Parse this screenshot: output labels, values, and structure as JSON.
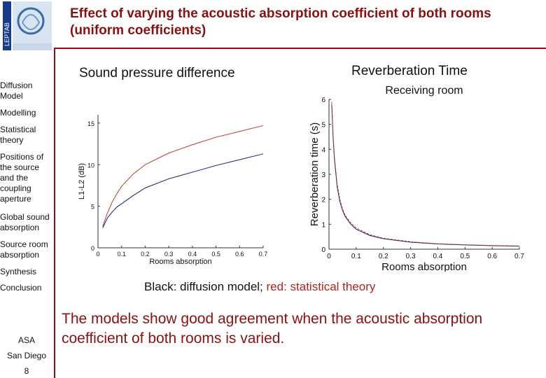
{
  "title": "Effect of varying the acoustic absorption coefficient of both rooms (uniform coefficients)",
  "logo": {
    "text": "LEPTAB",
    "icon": "university-logo-icon"
  },
  "sidebar": {
    "items": [
      {
        "label": "Diffusion Model"
      },
      {
        "label": "Modelling"
      },
      {
        "label": "Statistical theory"
      },
      {
        "label": "Positions of the source and the coupling aperture"
      },
      {
        "label": "Global sound absorption"
      },
      {
        "label": "Source room absorption"
      },
      {
        "label": "Synthesis"
      },
      {
        "label": "Conclusion"
      }
    ],
    "footer": {
      "line1": "ASA",
      "line2": "San Diego",
      "page": "8"
    }
  },
  "panels": {
    "left_title": "Sound pressure difference",
    "right_title": "Reverberation Time"
  },
  "caption": {
    "black": "Black: diffusion model; ",
    "red": "red: statistical theory"
  },
  "conclusion": "The models show good agreement when the acoustic absorption coefficient of both rooms is varied.",
  "chart_data": [
    {
      "type": "line",
      "title": "",
      "xlabel": "Rooms absorption",
      "ylabel": "L1-L2 (dB)",
      "xlim": [
        0,
        0.7
      ],
      "ylim": [
        0,
        16
      ],
      "xticks": [
        "0",
        "0.1",
        "0.2",
        "0.3",
        "0.4",
        "0.5",
        "0.6",
        "0.7"
      ],
      "yticks": [
        "0",
        "5",
        "10",
        "15"
      ],
      "series": [
        {
          "color": "#1a1a6e",
          "x": [
            0.02,
            0.04,
            0.06,
            0.08,
            0.1,
            0.15,
            0.2,
            0.3,
            0.4,
            0.5,
            0.6,
            0.7
          ],
          "y": [
            2.4,
            3.6,
            4.3,
            4.9,
            5.3,
            6.3,
            7.2,
            8.3,
            9.1,
            9.9,
            10.6,
            11.3
          ]
        },
        {
          "color": "#c0392b",
          "x": [
            0.02,
            0.04,
            0.06,
            0.08,
            0.1,
            0.15,
            0.2,
            0.3,
            0.4,
            0.5,
            0.6,
            0.7
          ],
          "y": [
            2.6,
            4.2,
            5.5,
            6.5,
            7.4,
            8.9,
            10.0,
            11.4,
            12.4,
            13.3,
            14.0,
            14.7
          ]
        }
      ]
    },
    {
      "type": "line",
      "title": "Receiving room",
      "xlabel": "Rooms absorption",
      "ylabel": "Reverberation time (s)",
      "xlim": [
        0,
        0.7
      ],
      "ylim": [
        0,
        6
      ],
      "xticks": [
        "0",
        "0.1",
        "0.2",
        "0.3",
        "0.4",
        "0.5",
        "0.6",
        "0.7"
      ],
      "yticks": [
        "0",
        "1",
        "2",
        "3",
        "4",
        "5",
        "6"
      ],
      "series": [
        {
          "color": "#1a1a6e",
          "x": [
            0.01,
            0.015,
            0.02,
            0.03,
            0.04,
            0.05,
            0.06,
            0.08,
            0.1,
            0.15,
            0.2,
            0.3,
            0.4,
            0.5,
            0.6,
            0.7
          ],
          "y": [
            5.8,
            4.5,
            3.6,
            2.5,
            1.9,
            1.55,
            1.3,
            1.0,
            0.8,
            0.55,
            0.42,
            0.28,
            0.21,
            0.17,
            0.14,
            0.12
          ]
        },
        {
          "color": "#c0392b",
          "x": [
            0.01,
            0.015,
            0.02,
            0.03,
            0.04,
            0.05,
            0.06,
            0.08,
            0.1,
            0.15,
            0.2,
            0.3,
            0.4,
            0.5,
            0.6,
            0.7
          ],
          "y": [
            5.9,
            4.6,
            3.7,
            2.6,
            2.0,
            1.6,
            1.35,
            1.05,
            0.85,
            0.58,
            0.44,
            0.3,
            0.22,
            0.18,
            0.15,
            0.13
          ]
        }
      ]
    }
  ]
}
